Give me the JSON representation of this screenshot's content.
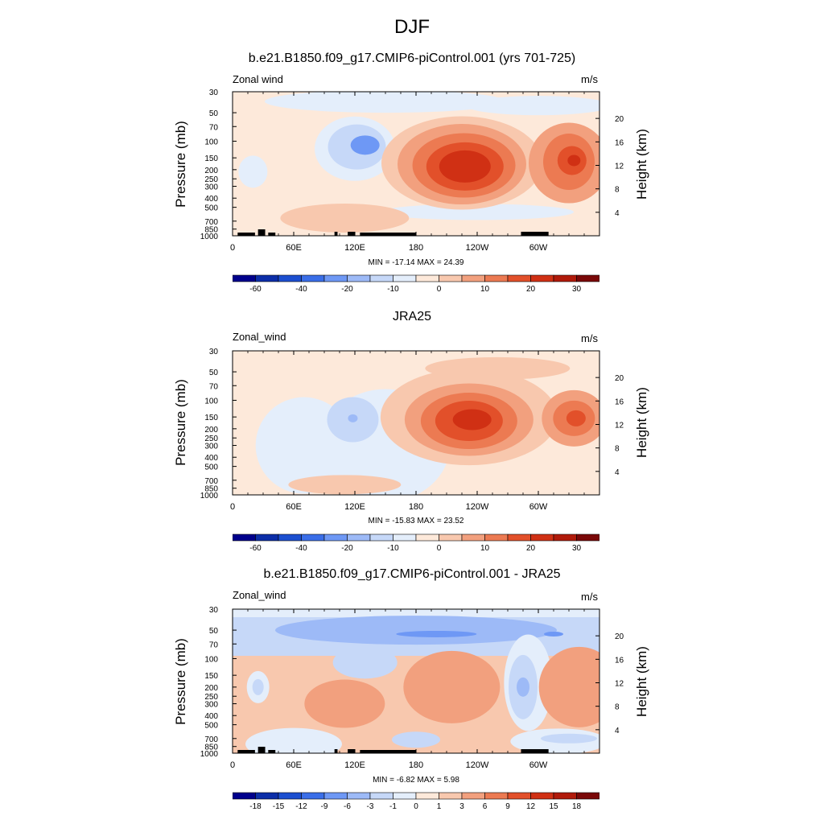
{
  "suptitle": "DJF",
  "panels": [
    {
      "title": "b.e21.B1850.f09_g17.CMIP6-piControl.001 (yrs 701-725)",
      "varname": "Zonal wind",
      "units": "m/s",
      "ylabel_left": "Pressure (mb)",
      "ylabel_right": "Height (km)",
      "minmax": "MIN = -17.14  MAX =  24.39",
      "cbar_labels": [
        "-60",
        "-40",
        "-20",
        "-10",
        "0",
        "10",
        "20",
        "30"
      ],
      "cbar_colors": [
        "#00008c",
        "#0c2ea8",
        "#1c4fd0",
        "#3a6ee8",
        "#6e98f5",
        "#9dbaf7",
        "#c6d8f8",
        "#e4eefb",
        "#fde9da",
        "#f8c8ae",
        "#f2a07e",
        "#ec7a52",
        "#e2502a",
        "#d03014",
        "#b01a0a",
        "#7a0808"
      ],
      "show_topo": true
    },
    {
      "title": "JRA25",
      "varname": "Zonal_wind",
      "units": "m/s",
      "ylabel_left": "Pressure (mb)",
      "ylabel_right": "Height (km)",
      "minmax": "MIN = -15.83  MAX =  23.52",
      "cbar_labels": [
        "-60",
        "-40",
        "-20",
        "-10",
        "0",
        "10",
        "20",
        "30"
      ],
      "cbar_colors": [
        "#00008c",
        "#0c2ea8",
        "#1c4fd0",
        "#3a6ee8",
        "#6e98f5",
        "#9dbaf7",
        "#c6d8f8",
        "#e4eefb",
        "#fde9da",
        "#f8c8ae",
        "#f2a07e",
        "#ec7a52",
        "#e2502a",
        "#d03014",
        "#b01a0a",
        "#7a0808"
      ],
      "show_topo": false
    },
    {
      "title": "b.e21.B1850.f09_g17.CMIP6-piControl.001 - JRA25",
      "varname": "Zonal_wind",
      "units": "m/s",
      "ylabel_left": "Pressure (mb)",
      "ylabel_right": "Height (km)",
      "minmax": "MIN =  -6.82  MAX =  5.98",
      "cbar_labels": [
        "-18",
        "-15",
        "-12",
        "-9",
        "-6",
        "-3",
        "-1",
        "0",
        "1",
        "3",
        "6",
        "9",
        "12",
        "15",
        "18"
      ],
      "cbar_colors": [
        "#00008c",
        "#0c2ea8",
        "#1c4fd0",
        "#3a6ee8",
        "#6e98f5",
        "#9dbaf7",
        "#c6d8f8",
        "#e4eefb",
        "#fde9da",
        "#f8c8ae",
        "#f2a07e",
        "#ec7a52",
        "#e2502a",
        "#d03014",
        "#b01a0a",
        "#7a0808"
      ],
      "show_topo": true
    }
  ],
  "chart_data": [
    {
      "type": "heatmap",
      "title": "b.e21.B1850.f09_g17.CMIP6-piControl.001 (yrs 701-725)",
      "xlabel": "",
      "ylabel": "Pressure (mb)",
      "ylabel_right": "Height (km)",
      "x_ticks": [
        "0",
        "60E",
        "120E",
        "180",
        "120W",
        "60W"
      ],
      "y_ticks": [
        "30",
        "50",
        "70",
        "100",
        "150",
        "200",
        "250",
        "300",
        "400",
        "500",
        "700",
        "850",
        "1000"
      ],
      "y2_ticks": [
        "4",
        "8",
        "12",
        "16",
        "20"
      ],
      "xlim": [
        0,
        360
      ],
      "ylim": [
        1000,
        30
      ],
      "y_scale": "log",
      "min": -17.14,
      "max": 24.39,
      "features": [
        {
          "kind": "max",
          "lon": 225,
          "p": 180,
          "value": 24
        },
        {
          "kind": "max",
          "lon": 330,
          "p": 160,
          "value": 18
        },
        {
          "kind": "min",
          "lon": 128,
          "p": 110,
          "value": -15
        }
      ]
    },
    {
      "type": "heatmap",
      "title": "JRA25",
      "xlabel": "",
      "ylabel": "Pressure (mb)",
      "ylabel_right": "Height (km)",
      "x_ticks": [
        "0",
        "60E",
        "120E",
        "180",
        "120W",
        "60W"
      ],
      "y_ticks": [
        "30",
        "50",
        "70",
        "100",
        "150",
        "200",
        "250",
        "300",
        "400",
        "500",
        "700",
        "850",
        "1000"
      ],
      "y2_ticks": [
        "4",
        "8",
        "12",
        "16",
        "20"
      ],
      "xlim": [
        0,
        360
      ],
      "ylim": [
        1000,
        30
      ],
      "y_scale": "log",
      "min": -15.83,
      "max": 23.52,
      "features": [
        {
          "kind": "max",
          "lon": 232,
          "p": 165,
          "value": 23
        },
        {
          "kind": "max",
          "lon": 335,
          "p": 155,
          "value": 17
        },
        {
          "kind": "min",
          "lon": 118,
          "p": 155,
          "value": -14
        }
      ]
    },
    {
      "type": "heatmap",
      "title": "b.e21.B1850.f09_g17.CMIP6-piControl.001 - JRA25",
      "xlabel": "",
      "ylabel": "Pressure (mb)",
      "ylabel_right": "Height (km)",
      "x_ticks": [
        "0",
        "60E",
        "120E",
        "180",
        "120W",
        "60W"
      ],
      "y_ticks": [
        "30",
        "50",
        "70",
        "100",
        "150",
        "200",
        "250",
        "300",
        "400",
        "500",
        "700",
        "850",
        "1000"
      ],
      "y2_ticks": [
        "4",
        "8",
        "12",
        "16",
        "20"
      ],
      "xlim": [
        0,
        360
      ],
      "ylim": [
        1000,
        30
      ],
      "y_scale": "log",
      "min": -6.82,
      "max": 5.98,
      "features": [
        {
          "kind": "min",
          "lon": 200,
          "p": 55,
          "value": -6.8
        },
        {
          "kind": "max",
          "lon": 215,
          "p": 200,
          "value": 4
        },
        {
          "kind": "max",
          "lon": 340,
          "p": 200,
          "value": 4
        }
      ]
    }
  ]
}
